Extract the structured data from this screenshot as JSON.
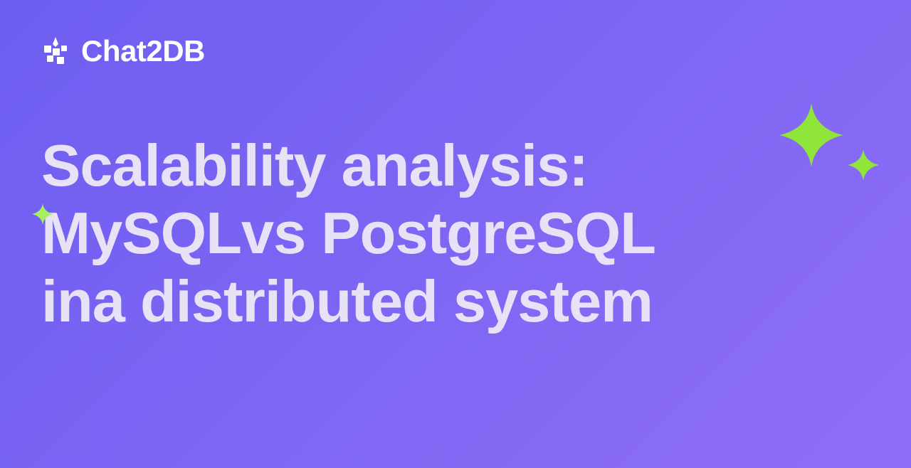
{
  "brand": {
    "name": "Chat2DB",
    "logo_color": "#ffffff",
    "text_color": "#ffffff"
  },
  "hero": {
    "title_line1": "Scalability analysis:",
    "title_line2": "MySQLvs PostgreSQL",
    "title_line3": "ina distributed system",
    "title_color": "#e9e2f6",
    "title_fontsize": 83,
    "title_weight": 800
  },
  "background": {
    "gradient_start": "#6d5ef0",
    "gradient_end": "#8f6ef7",
    "angle_deg": 135
  },
  "accents": {
    "sparkle_color": "#8fe53a",
    "tiny_sparkle_color": "#a7ef5e",
    "big_size": 90,
    "small_size": 44,
    "tiny_size": 30
  }
}
